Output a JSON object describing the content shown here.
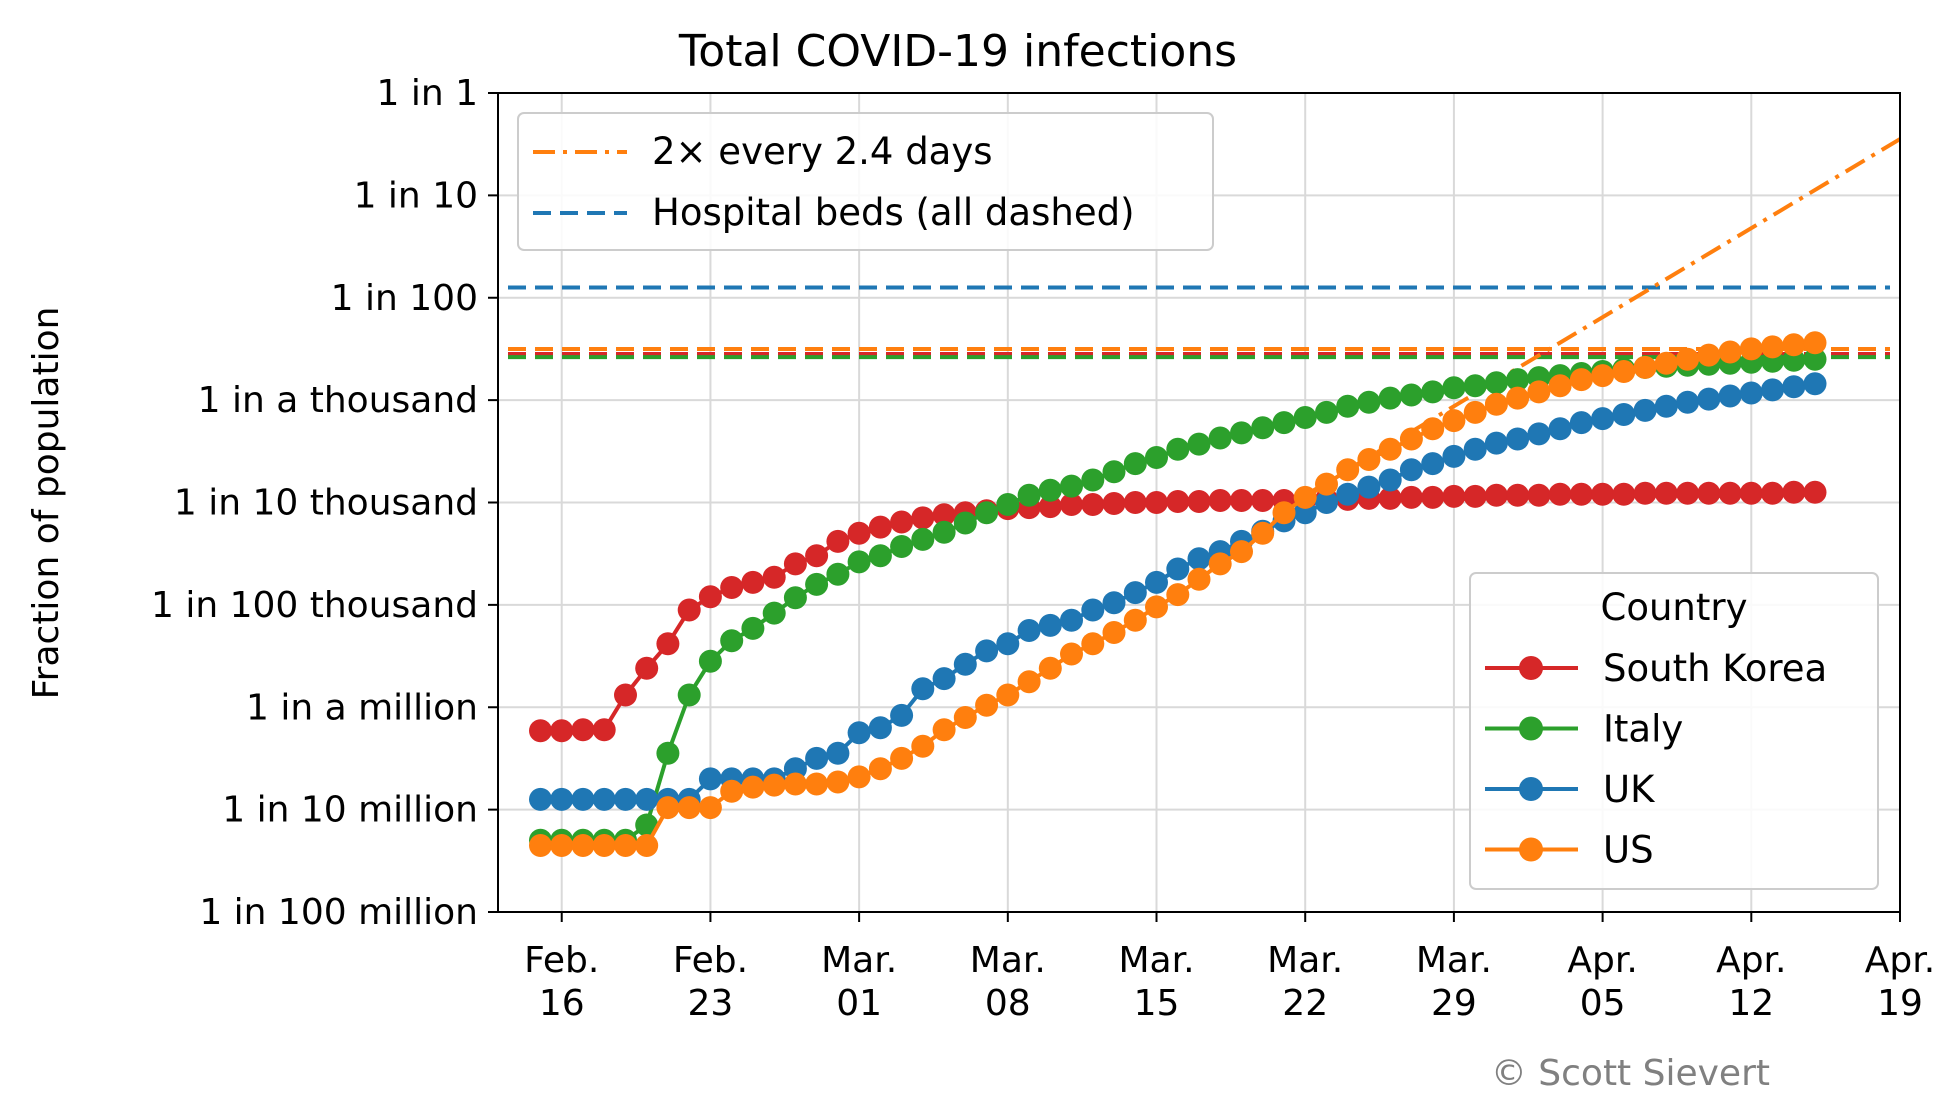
{
  "chart_data": {
    "type": "line",
    "title": "Total COVID-19 infections",
    "ylabel": "Fraction of population",
    "y_scale": "log",
    "ylim": [
      1e-08,
      1
    ],
    "y_ticks": [
      {
        "value": 1,
        "label": "1 in 1"
      },
      {
        "value": 0.1,
        "label": "1 in 10"
      },
      {
        "value": 0.01,
        "label": "1 in 100"
      },
      {
        "value": 0.001,
        "label": "1 in a thousand"
      },
      {
        "value": 0.0001,
        "label": "1 in 10 thousand"
      },
      {
        "value": 1e-05,
        "label": "1 in 100 thousand"
      },
      {
        "value": 1e-06,
        "label": "1 in a million"
      },
      {
        "value": 1e-07,
        "label": "1 in 10 million"
      },
      {
        "value": 1e-08,
        "label": "1 in 100 million"
      }
    ],
    "xlim": [
      "2020-02-13",
      "2020-04-19"
    ],
    "x_ticks": [
      {
        "date": "2020-02-16",
        "label": [
          "Feb.",
          "16"
        ]
      },
      {
        "date": "2020-02-23",
        "label": [
          "Feb.",
          "23"
        ]
      },
      {
        "date": "2020-03-01",
        "label": [
          "Mar.",
          "01"
        ]
      },
      {
        "date": "2020-03-08",
        "label": [
          "Mar.",
          "08"
        ]
      },
      {
        "date": "2020-03-15",
        "label": [
          "Mar.",
          "15"
        ]
      },
      {
        "date": "2020-03-22",
        "label": [
          "Mar.",
          "22"
        ]
      },
      {
        "date": "2020-03-29",
        "label": [
          "Mar.",
          "29"
        ]
      },
      {
        "date": "2020-04-05",
        "label": [
          "Apr.",
          "05"
        ]
      },
      {
        "date": "2020-04-12",
        "label": [
          "Apr.",
          "12"
        ]
      },
      {
        "date": "2020-04-19",
        "label": [
          "Apr.",
          "19"
        ]
      }
    ],
    "grid": true,
    "legend_title": "Country",
    "legend_placement": "lower-right",
    "reference_legend_placement": "upper-left",
    "x_start_date": "2020-02-15",
    "series": [
      {
        "name": "South Korea",
        "color": "#d62728",
        "log10_values": [
          -6.23,
          -6.23,
          -6.22,
          -6.22,
          -5.88,
          -5.62,
          -5.38,
          -5.05,
          -4.92,
          -4.83,
          -4.78,
          -4.73,
          -4.6,
          -4.52,
          -4.38,
          -4.3,
          -4.24,
          -4.19,
          -4.15,
          -4.12,
          -4.1,
          -4.08,
          -4.06,
          -4.05,
          -4.04,
          -4.02,
          -4.02,
          -4.01,
          -4.0,
          -4.0,
          -3.99,
          -3.99,
          -3.98,
          -3.98,
          -3.98,
          -3.98,
          -3.97,
          -3.97,
          -3.97,
          -3.96,
          -3.96,
          -3.95,
          -3.95,
          -3.94,
          -3.94,
          -3.93,
          -3.93,
          -3.93,
          -3.92,
          -3.92,
          -3.92,
          -3.92,
          -3.91,
          -3.91,
          -3.91,
          -3.91,
          -3.91,
          -3.91,
          -3.91,
          -3.9,
          -3.9
        ]
      },
      {
        "name": "Italy",
        "color": "#2ca02c",
        "log10_values": [
          -7.3,
          -7.3,
          -7.3,
          -7.3,
          -7.3,
          -7.15,
          -6.45,
          -5.88,
          -5.55,
          -5.35,
          -5.23,
          -5.08,
          -4.93,
          -4.8,
          -4.7,
          -4.58,
          -4.52,
          -4.43,
          -4.36,
          -4.29,
          -4.2,
          -4.1,
          -4.02,
          -3.93,
          -3.88,
          -3.84,
          -3.78,
          -3.7,
          -3.62,
          -3.56,
          -3.48,
          -3.43,
          -3.37,
          -3.32,
          -3.27,
          -3.22,
          -3.17,
          -3.12,
          -3.06,
          -3.02,
          -2.98,
          -2.95,
          -2.92,
          -2.88,
          -2.86,
          -2.83,
          -2.8,
          -2.78,
          -2.76,
          -2.74,
          -2.72,
          -2.7,
          -2.68,
          -2.67,
          -2.66,
          -2.65,
          -2.64,
          -2.63,
          -2.62,
          -2.61,
          -2.6
        ]
      },
      {
        "name": "UK",
        "color": "#1f77b4",
        "log10_values": [
          -6.9,
          -6.9,
          -6.9,
          -6.9,
          -6.9,
          -6.9,
          -6.9,
          -6.9,
          -6.7,
          -6.7,
          -6.7,
          -6.7,
          -6.6,
          -6.5,
          -6.45,
          -6.25,
          -6.2,
          -6.08,
          -5.82,
          -5.72,
          -5.58,
          -5.45,
          -5.38,
          -5.25,
          -5.2,
          -5.15,
          -5.05,
          -4.98,
          -4.88,
          -4.78,
          -4.65,
          -4.55,
          -4.48,
          -4.38,
          -4.28,
          -4.18,
          -4.1,
          -4.0,
          -3.92,
          -3.85,
          -3.78,
          -3.68,
          -3.62,
          -3.55,
          -3.48,
          -3.42,
          -3.38,
          -3.33,
          -3.28,
          -3.22,
          -3.18,
          -3.14,
          -3.1,
          -3.06,
          -3.02,
          -2.99,
          -2.96,
          -2.93,
          -2.9,
          -2.87,
          -2.84
        ]
      },
      {
        "name": "US",
        "color": "#ff7f0e",
        "log10_values": [
          -7.35,
          -7.35,
          -7.35,
          -7.35,
          -7.35,
          -7.35,
          -6.98,
          -6.98,
          -6.98,
          -6.82,
          -6.78,
          -6.76,
          -6.75,
          -6.75,
          -6.73,
          -6.68,
          -6.6,
          -6.5,
          -6.38,
          -6.22,
          -6.1,
          -5.98,
          -5.88,
          -5.75,
          -5.62,
          -5.48,
          -5.38,
          -5.27,
          -5.15,
          -5.02,
          -4.9,
          -4.75,
          -4.6,
          -4.48,
          -4.3,
          -4.1,
          -3.95,
          -3.82,
          -3.68,
          -3.58,
          -3.48,
          -3.38,
          -3.28,
          -3.2,
          -3.12,
          -3.04,
          -2.98,
          -2.92,
          -2.86,
          -2.8,
          -2.76,
          -2.72,
          -2.68,
          -2.64,
          -2.6,
          -2.56,
          -2.53,
          -2.5,
          -2.48,
          -2.46,
          -2.44
        ]
      }
    ],
    "reference_lines": [
      {
        "name": "2× every 2.4 days",
        "color": "#ff7f0e",
        "style": "dashdot",
        "from": {
          "date": "2020-03-22",
          "log10_value": -3.93
        },
        "to": {
          "date": "2020-04-19",
          "log10_value": -0.45
        }
      },
      {
        "name": "Hospital beds (all dashed)",
        "color": "#1f77b4",
        "style": "dashed",
        "log10_value": -1.9
      }
    ],
    "hospital_beds_lines": [
      {
        "color": "#ff7f0e",
        "log10_value": -2.5
      },
      {
        "color": "#d62728",
        "log10_value": -2.55
      },
      {
        "color": "#2ca02c",
        "log10_value": -2.58
      }
    ]
  },
  "credit": "© Scott Sievert"
}
